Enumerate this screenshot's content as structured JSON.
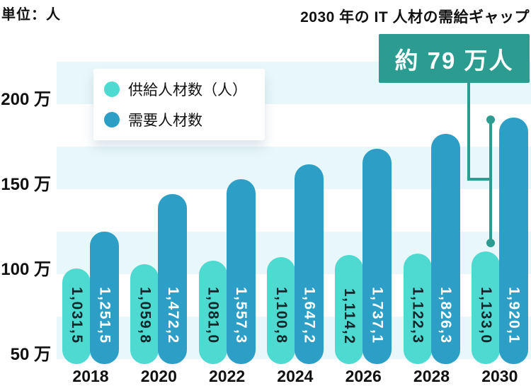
{
  "header": {
    "unit_label": "単位：人",
    "annotation_title": "2030 年の IT 人材の需給ギャップ",
    "gap_badge": "約 79 万人"
  },
  "colors": {
    "supply_bar": "#4ED9D1",
    "demand_bar": "#2D9FC7",
    "accent_green": "#2B9C8F",
    "stripe_light": "#E8F7FA",
    "text": "#111111",
    "label_on_supply": "#10272C",
    "label_on_demand": "#FFFFFF"
  },
  "chart_data": {
    "type": "bar",
    "title": "2030 年の IT 人材の需給ギャップ",
    "unit": "人",
    "categories": [
      "2018",
      "2020",
      "2022",
      "2024",
      "2026",
      "2028",
      "2030"
    ],
    "series": [
      {
        "name": "供給人材数（人）",
        "color": "#4ED9D1",
        "values_man": [
          103.15,
          105.98,
          108.1,
          110.08,
          111.42,
          112.23,
          113.3
        ],
        "labels": [
          "1,031,5",
          "1,059,8",
          "1,081,0",
          "1,100,8",
          "1,114,2",
          "1,122,3",
          "1,133,0"
        ]
      },
      {
        "name": "需要人材数",
        "color": "#2D9FC7",
        "values_man": [
          125.15,
          147.22,
          155.73,
          164.72,
          173.71,
          182.63,
          192.01
        ],
        "labels": [
          "1,251,5",
          "1,472,2",
          "1,557,3",
          "1,647,2",
          "1,737,1",
          "1,826,3",
          "1,920,1"
        ]
      }
    ],
    "y_axis": {
      "ticks": [
        "200 万",
        "150 万",
        "100 万",
        "50 万"
      ],
      "tick_values_man": [
        200,
        150,
        100,
        50
      ],
      "baseline_man": 50
    },
    "legend_position": "top-left-inside",
    "grid": "horizontal-stripes",
    "annotation": {
      "badge": "約 79 万人",
      "gap_year": "2030",
      "gap_value_man": 78.71
    }
  }
}
